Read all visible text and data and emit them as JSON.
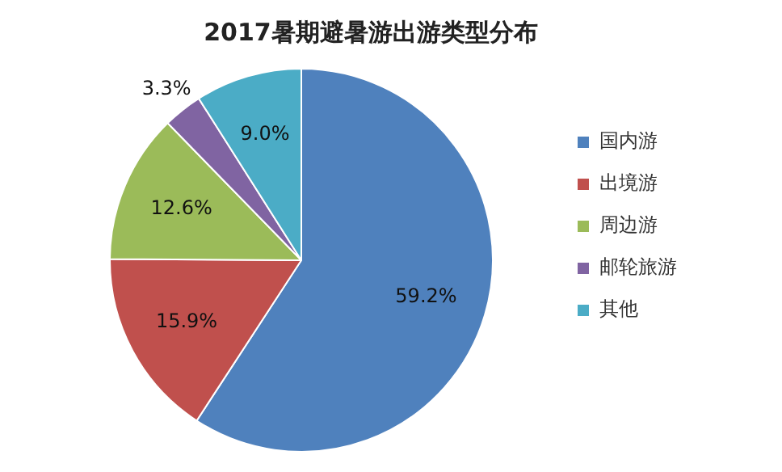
{
  "chart_data": {
    "type": "pie",
    "title": "2017暑期避暑游出游类型分布",
    "categories": [
      "国内游",
      "出境游",
      "周边游",
      "邮轮旅游",
      "其他"
    ],
    "values": [
      59.2,
      15.9,
      12.6,
      3.3,
      9.0
    ],
    "colors": [
      "#4f81bd",
      "#c0504d",
      "#9bbb59",
      "#8064a2",
      "#4bacc6"
    ],
    "value_labels": [
      "59.2%",
      "15.9%",
      "12.6%",
      "3.3%",
      "9.0%"
    ],
    "legend": "right"
  }
}
